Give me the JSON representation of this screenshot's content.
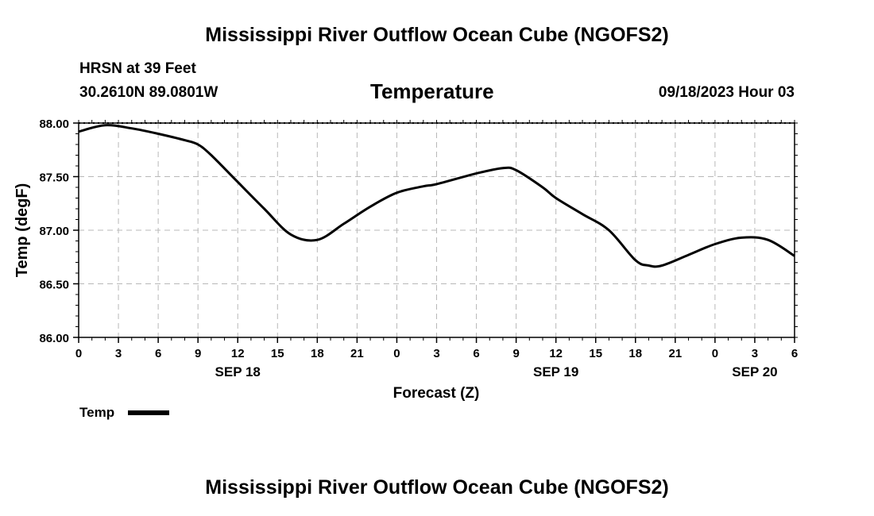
{
  "header": {
    "title": "Mississippi River Outflow Ocean Cube (NGOFS2)",
    "station": "HRSN at 39 Feet",
    "coords": "30.2610N  89.0801W",
    "datetime": "09/18/2023 Hour 03"
  },
  "footer": {
    "title": "Mississippi River Outflow Ocean Cube (NGOFS2)"
  },
  "legend": {
    "label": "Temp",
    "color": "#000000"
  },
  "chart_data": {
    "type": "line",
    "title": "Temperature",
    "xlabel": "Forecast (Z)",
    "ylabel": "Temp (degF)",
    "xlim": [
      0,
      54
    ],
    "ylim": [
      86.0,
      88.0
    ],
    "y_ticks": [
      "86.00",
      "86.50",
      "87.00",
      "87.50",
      "88.00"
    ],
    "x_ticks": [
      "0",
      "3",
      "6",
      "9",
      "12",
      "15",
      "18",
      "21",
      "0",
      "3",
      "6",
      "9",
      "12",
      "15",
      "18",
      "21",
      "0",
      "3",
      "6"
    ],
    "day_labels": [
      {
        "label": "SEP 18",
        "hour": 12
      },
      {
        "label": "SEP 19",
        "hour": 36
      },
      {
        "label": "SEP 20",
        "hour": 51
      }
    ],
    "grid": true,
    "series": [
      {
        "name": "Temp",
        "color": "#000000",
        "x": [
          0,
          2,
          4,
          6,
          8,
          9,
          10,
          12,
          14,
          16,
          18,
          20,
          22,
          24,
          26,
          27,
          30,
          32,
          33,
          35,
          36,
          38,
          40,
          42,
          43,
          44,
          46,
          48,
          50,
          52,
          54
        ],
        "y": [
          87.92,
          87.98,
          87.95,
          87.9,
          87.84,
          87.8,
          87.7,
          87.45,
          87.2,
          86.96,
          86.91,
          87.06,
          87.22,
          87.35,
          87.41,
          87.43,
          87.53,
          87.58,
          87.56,
          87.4,
          87.3,
          87.15,
          87.0,
          86.72,
          86.67,
          86.67,
          86.77,
          86.87,
          86.93,
          86.91,
          86.76
        ]
      }
    ]
  }
}
